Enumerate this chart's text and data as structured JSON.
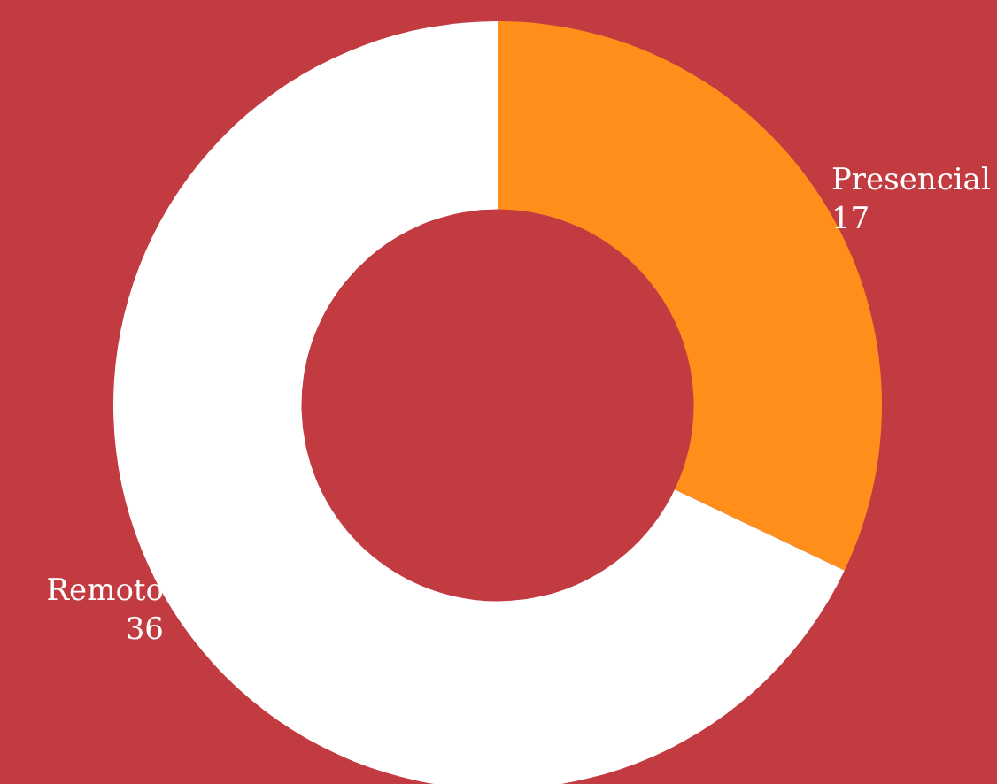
{
  "chart_data": {
    "type": "donut",
    "categories": [
      "Presencial",
      "Remoto"
    ],
    "values": [
      17,
      36
    ],
    "colors": [
      "#ff8f1a",
      "#ffffff"
    ],
    "data_labels": true,
    "legend": false
  }
}
